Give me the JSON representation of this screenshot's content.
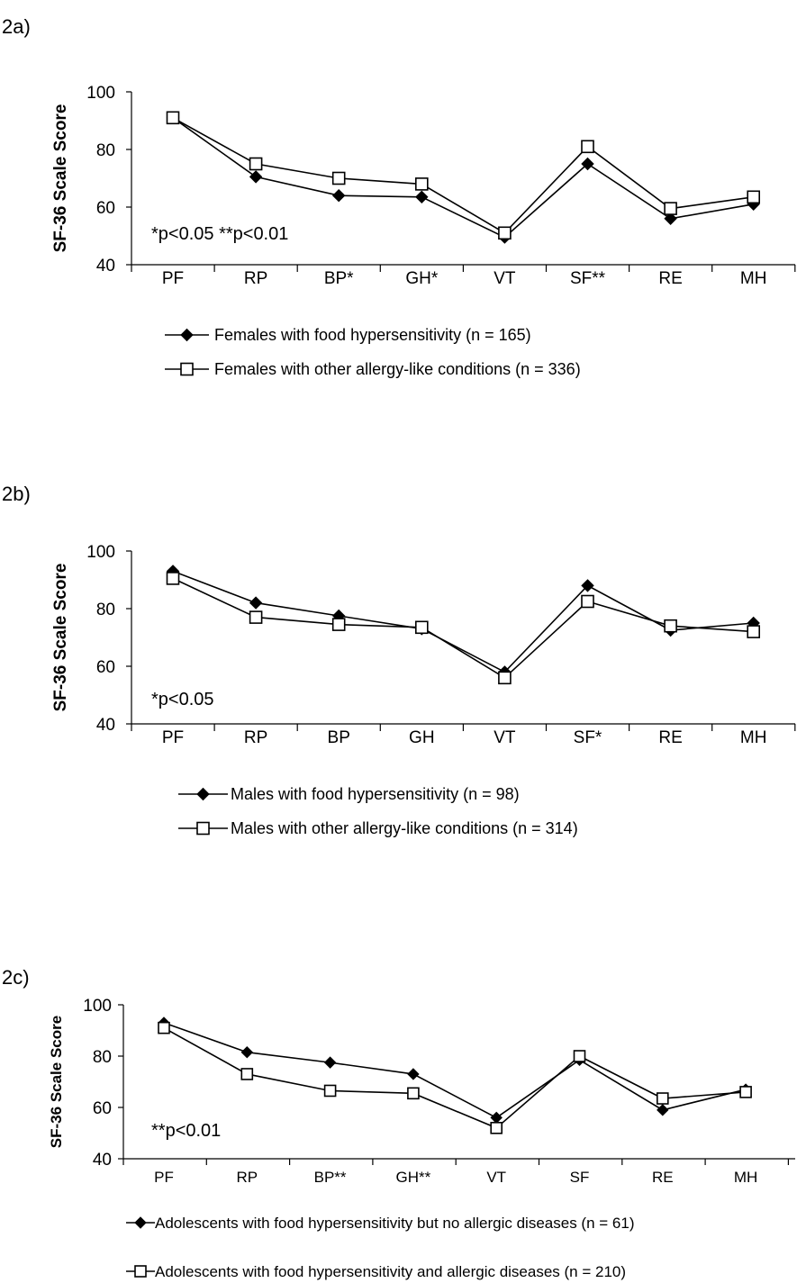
{
  "chart_data": [
    {
      "type": "line",
      "panel_label": "2a)",
      "ylabel": "SF-36 Scale Score",
      "xlabel": "",
      "ylim": [
        40,
        100
      ],
      "yticks": [
        "40",
        "60",
        "80",
        "100"
      ],
      "categories": [
        "PF",
        "RP",
        "BP*",
        "GH*",
        "VT",
        "SF**",
        "RE",
        "MH"
      ],
      "annotation": "*p<0.05   **p<0.01",
      "legend_position": "bottom",
      "series": [
        {
          "name": "Females with food hypersensitivity (n = 165)",
          "marker": "filled-diamond",
          "values": [
            91,
            70.5,
            64,
            63.5,
            49.5,
            75,
            56,
            61
          ]
        },
        {
          "name": "Females with other allergy-like conditions (n = 336)",
          "marker": "open-square",
          "values": [
            91,
            75,
            70,
            68,
            51,
            81,
            59.5,
            63.5
          ]
        }
      ]
    },
    {
      "type": "line",
      "panel_label": "2b)",
      "ylabel": "SF-36 Scale Score",
      "xlabel": "",
      "ylim": [
        40,
        100
      ],
      "yticks": [
        "40",
        "60",
        "80",
        "100"
      ],
      "categories": [
        "PF",
        "RP",
        "BP",
        "GH",
        "VT",
        "SF*",
        "RE",
        "MH"
      ],
      "annotation": "*p<0.05",
      "legend_position": "bottom",
      "series": [
        {
          "name": "Males with food hypersensitivity (n = 98)",
          "marker": "filled-diamond",
          "values": [
            93,
            82,
            77.5,
            73,
            58,
            88,
            72.5,
            75
          ]
        },
        {
          "name": "Males with other allergy-like conditions (n = 314)",
          "marker": "open-square",
          "values": [
            90.5,
            77,
            74.5,
            73.5,
            56,
            82.5,
            74,
            72
          ]
        }
      ]
    },
    {
      "type": "line",
      "panel_label": "2c)",
      "ylabel": "SF-36 Scale Score",
      "xlabel": "",
      "ylim": [
        40,
        100
      ],
      "yticks": [
        "40",
        "60",
        "80",
        "100"
      ],
      "categories": [
        "PF",
        "RP",
        "BP**",
        "GH**",
        "VT",
        "SF",
        "RE",
        "MH"
      ],
      "annotation": "**p<0.01",
      "legend_position": "bottom",
      "series": [
        {
          "name": "Adolescents with food hypersensitivity but no allergic diseases (n = 61)",
          "marker": "filled-diamond",
          "values": [
            93,
            81.5,
            77.5,
            73,
            56,
            78.5,
            59,
            67
          ]
        },
        {
          "name": "Adolescents with food hypersensitivity and allergic diseases (n = 210)",
          "marker": "open-square",
          "values": [
            91,
            73,
            66.5,
            65.5,
            52,
            80,
            63.5,
            66
          ]
        }
      ]
    }
  ]
}
